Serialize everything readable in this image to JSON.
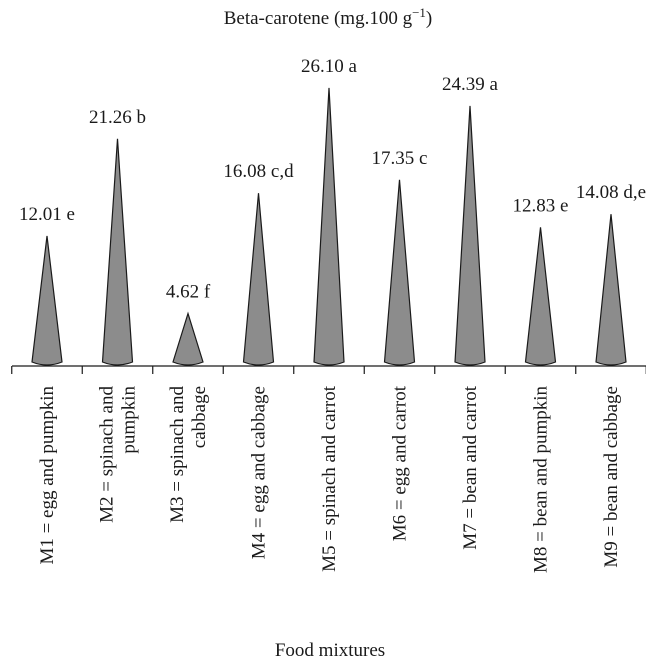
{
  "chart_data": {
    "type": "bar",
    "title": "Beta-carotene (mg.100 g",
    "title_sup": "−1",
    "title_close": ")",
    "xlabel": "Food mixtures",
    "ylabel": "",
    "ylim": [
      0,
      26.1
    ],
    "grid": false,
    "bar_shape": "cone",
    "bar_color": "#8c8c8c",
    "categories": [
      {
        "lines": [
          "M1 = egg and pumpkin"
        ]
      },
      {
        "lines": [
          "M2 = spinach and",
          "pumpkin"
        ]
      },
      {
        "lines": [
          "M3 = spinach and",
          "cabbage"
        ]
      },
      {
        "lines": [
          "M4 = egg and cabbage"
        ]
      },
      {
        "lines": [
          "M5 = spinach and carrot"
        ]
      },
      {
        "lines": [
          "M6 = egg and carrot"
        ]
      },
      {
        "lines": [
          "M7 = bean and carrot"
        ]
      },
      {
        "lines": [
          "M8 = bean and pumpkin"
        ]
      },
      {
        "lines": [
          "M9 = bean and cabbage"
        ]
      }
    ],
    "values": [
      12.01,
      21.26,
      4.62,
      16.08,
      26.1,
      17.35,
      24.39,
      12.83,
      14.08
    ],
    "data_labels": [
      "12.01 e",
      "21.26 b",
      "4.62 f",
      "16.08 c,d",
      "26.10 a",
      "17.35 c",
      "24.39 a",
      "12.83 e",
      "14.08 d,e"
    ]
  }
}
